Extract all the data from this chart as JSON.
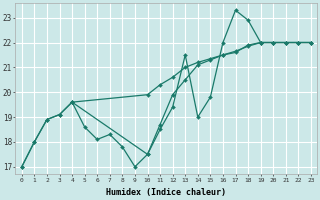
{
  "xlabel": "Humidex (Indice chaleur)",
  "bg_color": "#cce8e8",
  "grid_color": "#ffffff",
  "line_color": "#1a7a6a",
  "xlim": [
    -0.5,
    23.5
  ],
  "ylim": [
    16.7,
    23.6
  ],
  "yticks": [
    17,
    18,
    19,
    20,
    21,
    22,
    23
  ],
  "xticks": [
    0,
    1,
    2,
    3,
    4,
    5,
    6,
    7,
    8,
    9,
    10,
    11,
    12,
    13,
    14,
    15,
    16,
    17,
    18,
    19,
    20,
    21,
    22,
    23
  ],
  "line1_x": [
    0,
    1,
    2,
    3,
    4,
    5,
    6,
    7,
    8,
    9,
    10,
    11,
    12,
    13,
    14,
    15,
    16,
    17,
    18,
    19,
    20,
    21,
    22,
    23
  ],
  "line1_y": [
    17.0,
    18.0,
    18.9,
    19.1,
    19.6,
    18.6,
    18.1,
    18.3,
    17.8,
    17.0,
    17.5,
    18.5,
    19.4,
    21.5,
    19.0,
    19.8,
    22.0,
    23.3,
    22.9,
    22.0,
    22.0,
    22.0,
    22.0,
    22.0
  ],
  "line2_x": [
    0,
    1,
    2,
    3,
    4,
    10,
    11,
    12,
    13,
    14,
    15,
    16,
    17,
    18,
    19,
    20,
    21,
    22,
    23
  ],
  "line2_y": [
    17.0,
    18.0,
    18.9,
    19.1,
    19.6,
    17.5,
    18.7,
    19.9,
    20.5,
    21.1,
    21.3,
    21.5,
    21.6,
    21.9,
    22.0,
    22.0,
    22.0,
    22.0,
    22.0
  ],
  "line3_x": [
    4,
    10,
    11,
    12,
    13,
    14,
    15,
    16,
    17,
    18,
    19,
    20,
    21,
    22,
    23
  ],
  "line3_y": [
    19.6,
    19.9,
    20.3,
    20.6,
    21.0,
    21.2,
    21.35,
    21.5,
    21.65,
    21.85,
    22.0,
    22.0,
    22.0,
    22.0,
    22.0
  ]
}
